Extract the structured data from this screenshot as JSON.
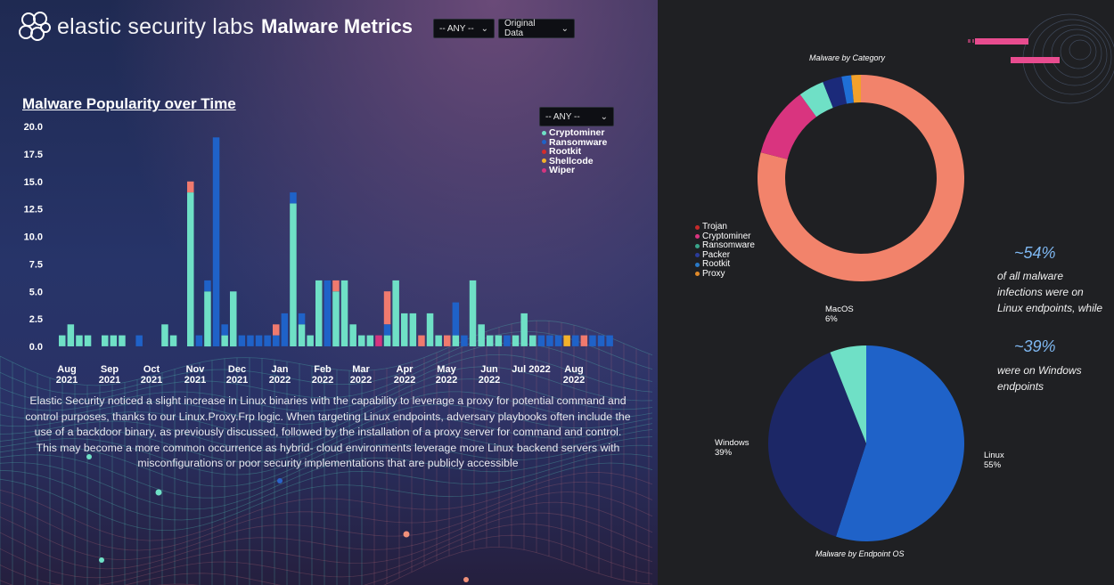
{
  "header": {
    "logo_text": "elastic security labs",
    "title": "Malware Metrics",
    "filter1": "-- ANY --",
    "filter2": "Original Data"
  },
  "colors": {
    "cryptominer": "#6fe0c6",
    "ransomware": "#1f62c8",
    "rootkit": "#f07a6e",
    "shellcode": "#f2b12b",
    "wiper": "#d4357f",
    "trojan": "#f2836b",
    "packer": "#1b2a7a",
    "proxy": "#f2a12b",
    "donut_cryptominer": "#d9347f",
    "donut_ransomware": "#6fe0c6",
    "donut_rootkit": "#1f6fd6",
    "linux": "#1f62c8",
    "windows": "#1c2766",
    "macos": "#6fe0c6",
    "accent_pink": "#e84c8f"
  },
  "chart1": {
    "title": "Malware Popularity over Time",
    "filter": "-- ANY --",
    "legend": [
      "Cryptominer",
      "Ransomware",
      "Rootkit",
      "Shellcode",
      "Wiper"
    ]
  },
  "paragraph": "Elastic Security noticed a slight increase in Linux binaries with the capability to leverage a proxy for potential command and control purposes, thanks to our Linux.Proxy.Frp logic. When targeting Linux endpoints, adversary playbooks often include the use of a backdoor binary, as previously discussed, followed by the installation of a proxy server for command and control. This may become a more common occurrence as hybrid- cloud environments leverage more Linux backend servers with misconfigurations or poor security implementations that are publicly accessible",
  "chart_data": [
    {
      "type": "bar",
      "stacked": true,
      "title": "Malware Popularity over Time",
      "ylim": [
        0,
        20
      ],
      "yticks": [
        "0.0",
        "2.5",
        "5.0",
        "7.5",
        "10.0",
        "12.5",
        "15.0",
        "17.5",
        "20.0"
      ],
      "xticks": [
        [
          "Aug",
          "2021"
        ],
        [
          "Sep",
          "2021"
        ],
        [
          "Oct",
          "2021"
        ],
        [
          "Nov",
          "2021"
        ],
        [
          "Dec",
          "2021"
        ],
        [
          "Jan",
          "2022"
        ],
        [
          "Feb",
          "2022"
        ],
        [
          "Mar",
          "2022"
        ],
        [
          "Apr",
          "2022"
        ],
        [
          "May",
          "2022"
        ],
        [
          "Jun",
          "2022"
        ],
        [
          "Jul 2022",
          ""
        ],
        [
          "Aug",
          "2022"
        ]
      ],
      "series_order": [
        "Cryptominer",
        "Ransomware",
        "Rootkit",
        "Shellcode",
        "Wiper"
      ],
      "bars": [
        [
          1,
          0,
          0,
          0,
          0
        ],
        [
          2,
          0,
          0,
          0,
          0
        ],
        [
          1,
          0,
          0,
          0,
          0
        ],
        [
          1,
          0,
          0,
          0,
          0
        ],
        null,
        [
          1,
          0,
          0,
          0,
          0
        ],
        [
          1,
          0,
          0,
          0,
          0
        ],
        [
          1,
          0,
          0,
          0,
          0
        ],
        null,
        [
          0,
          1,
          0,
          0,
          0
        ],
        null,
        null,
        [
          2,
          0,
          0,
          0,
          0
        ],
        [
          1,
          0,
          0,
          0,
          0
        ],
        null,
        [
          14,
          0,
          1,
          0,
          0
        ],
        [
          0,
          1,
          0,
          0,
          0
        ],
        [
          5,
          1,
          0,
          0,
          0
        ],
        [
          0,
          19,
          0,
          0,
          0
        ],
        [
          1,
          1,
          0,
          0,
          0
        ],
        [
          5,
          0,
          0,
          0,
          0
        ],
        [
          0,
          1,
          0,
          0,
          0
        ],
        [
          0,
          1,
          0,
          0,
          0
        ],
        [
          0,
          1,
          0,
          0,
          0
        ],
        [
          0,
          1,
          0,
          0,
          0
        ],
        [
          0,
          1,
          1,
          0,
          0
        ],
        [
          0,
          3,
          0,
          0,
          0
        ],
        [
          13,
          1,
          0,
          0,
          0
        ],
        [
          2,
          1,
          0,
          0,
          0
        ],
        [
          1,
          0,
          0,
          0,
          0
        ],
        [
          6,
          0,
          0,
          0,
          0
        ],
        [
          0,
          6,
          0,
          0,
          0
        ],
        [
          5,
          0,
          1,
          0,
          0
        ],
        [
          6,
          0,
          0,
          0,
          0
        ],
        [
          2,
          0,
          0,
          0,
          0
        ],
        [
          1,
          0,
          0,
          0,
          0
        ],
        [
          1,
          0,
          0,
          0,
          0
        ],
        [
          0,
          0,
          0,
          0,
          1
        ],
        [
          1,
          1,
          3,
          0,
          0
        ],
        [
          6,
          0,
          0,
          0,
          0
        ],
        [
          3,
          0,
          0,
          0,
          0
        ],
        [
          3,
          0,
          0,
          0,
          0
        ],
        [
          0,
          0,
          1,
          0,
          0
        ],
        [
          3,
          0,
          0,
          0,
          0
        ],
        [
          1,
          0,
          0,
          0,
          0
        ],
        [
          0,
          0,
          1,
          0,
          0
        ],
        [
          1,
          3,
          0,
          0,
          0
        ],
        [
          0,
          1,
          0,
          0,
          0
        ],
        [
          6,
          0,
          0,
          0,
          0
        ],
        [
          2,
          0,
          0,
          0,
          0
        ],
        [
          1,
          0,
          0,
          0,
          0
        ],
        [
          1,
          0,
          0,
          0,
          0
        ],
        [
          0,
          1,
          0,
          0,
          0
        ],
        [
          1,
          0,
          0,
          0,
          0
        ],
        [
          3,
          0,
          0,
          0,
          0
        ],
        [
          1,
          0,
          0,
          0,
          0
        ],
        [
          0,
          1,
          0,
          0,
          0
        ],
        [
          0,
          1,
          0,
          0,
          0
        ],
        [
          0,
          1,
          0,
          0,
          0
        ],
        [
          0,
          0,
          0,
          1,
          0
        ],
        [
          0,
          1,
          0,
          0,
          0
        ],
        [
          0,
          0,
          1,
          0,
          0
        ],
        [
          0,
          1,
          0,
          0,
          0
        ],
        [
          0,
          1,
          0,
          0,
          0
        ],
        [
          0,
          1,
          0,
          0,
          0
        ]
      ]
    },
    {
      "type": "pie",
      "donut": true,
      "title": "Malware by Category",
      "labels": [
        "Trojan",
        "Cryptominer",
        "Ransomware",
        "Packer",
        "Rootkit",
        "Proxy"
      ],
      "values": [
        79,
        11,
        4,
        3,
        1.5,
        1.5
      ]
    },
    {
      "type": "pie",
      "title": "Malware by Endpoint OS",
      "labels": [
        "Linux",
        "Windows",
        "MacOS"
      ],
      "values": [
        55,
        39,
        6
      ]
    }
  ],
  "donut_legend": [
    "Trojan",
    "Cryptominer",
    "Ransomware",
    "Packer",
    "Rootkit",
    "Proxy"
  ],
  "pie_labels": {
    "macos_name": "MacOS",
    "macos_pct": "6%",
    "windows_name": "Windows",
    "windows_pct": "39%",
    "linux_name": "Linux",
    "linux_pct": "55%"
  },
  "stats": {
    "linux_pct": "~54%",
    "linux_line1": "of all malware",
    "linux_line2": "infections were on",
    "linux_line3": "Linux endpoints, while",
    "windows_pct": "~39%",
    "windows_line1": "were on Windows",
    "windows_line2": "endpoints"
  }
}
